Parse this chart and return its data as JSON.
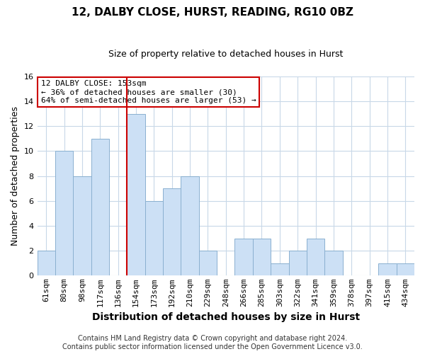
{
  "title": "12, DALBY CLOSE, HURST, READING, RG10 0BZ",
  "subtitle": "Size of property relative to detached houses in Hurst",
  "xlabel": "Distribution of detached houses by size in Hurst",
  "ylabel": "Number of detached properties",
  "bar_labels": [
    "61sqm",
    "80sqm",
    "98sqm",
    "117sqm",
    "136sqm",
    "154sqm",
    "173sqm",
    "192sqm",
    "210sqm",
    "229sqm",
    "248sqm",
    "266sqm",
    "285sqm",
    "303sqm",
    "322sqm",
    "341sqm",
    "359sqm",
    "378sqm",
    "397sqm",
    "415sqm",
    "434sqm"
  ],
  "bar_values": [
    2,
    10,
    8,
    11,
    0,
    13,
    6,
    7,
    8,
    2,
    0,
    3,
    3,
    1,
    2,
    3,
    2,
    0,
    0,
    1,
    1
  ],
  "bar_color": "#cce0f5",
  "bar_edge_color": "#8ab0d0",
  "highlight_line_color": "#cc0000",
  "highlight_line_index": 5,
  "annotation_title": "12 DALBY CLOSE: 153sqm",
  "annotation_line1": "← 36% of detached houses are smaller (30)",
  "annotation_line2": "64% of semi-detached houses are larger (53) →",
  "annotation_box_facecolor": "#ffffff",
  "annotation_box_edgecolor": "#cc0000",
  "ylim": [
    0,
    16
  ],
  "yticks": [
    0,
    2,
    4,
    6,
    8,
    10,
    12,
    14,
    16
  ],
  "grid_color": "#c8d8e8",
  "footer_line1": "Contains HM Land Registry data © Crown copyright and database right 2024.",
  "footer_line2": "Contains public sector information licensed under the Open Government Licence v3.0.",
  "bg_color": "#ffffff",
  "title_fontsize": 11,
  "subtitle_fontsize": 9,
  "axis_label_fontsize": 9,
  "tick_fontsize": 8,
  "annotation_fontsize": 8,
  "footer_fontsize": 7
}
